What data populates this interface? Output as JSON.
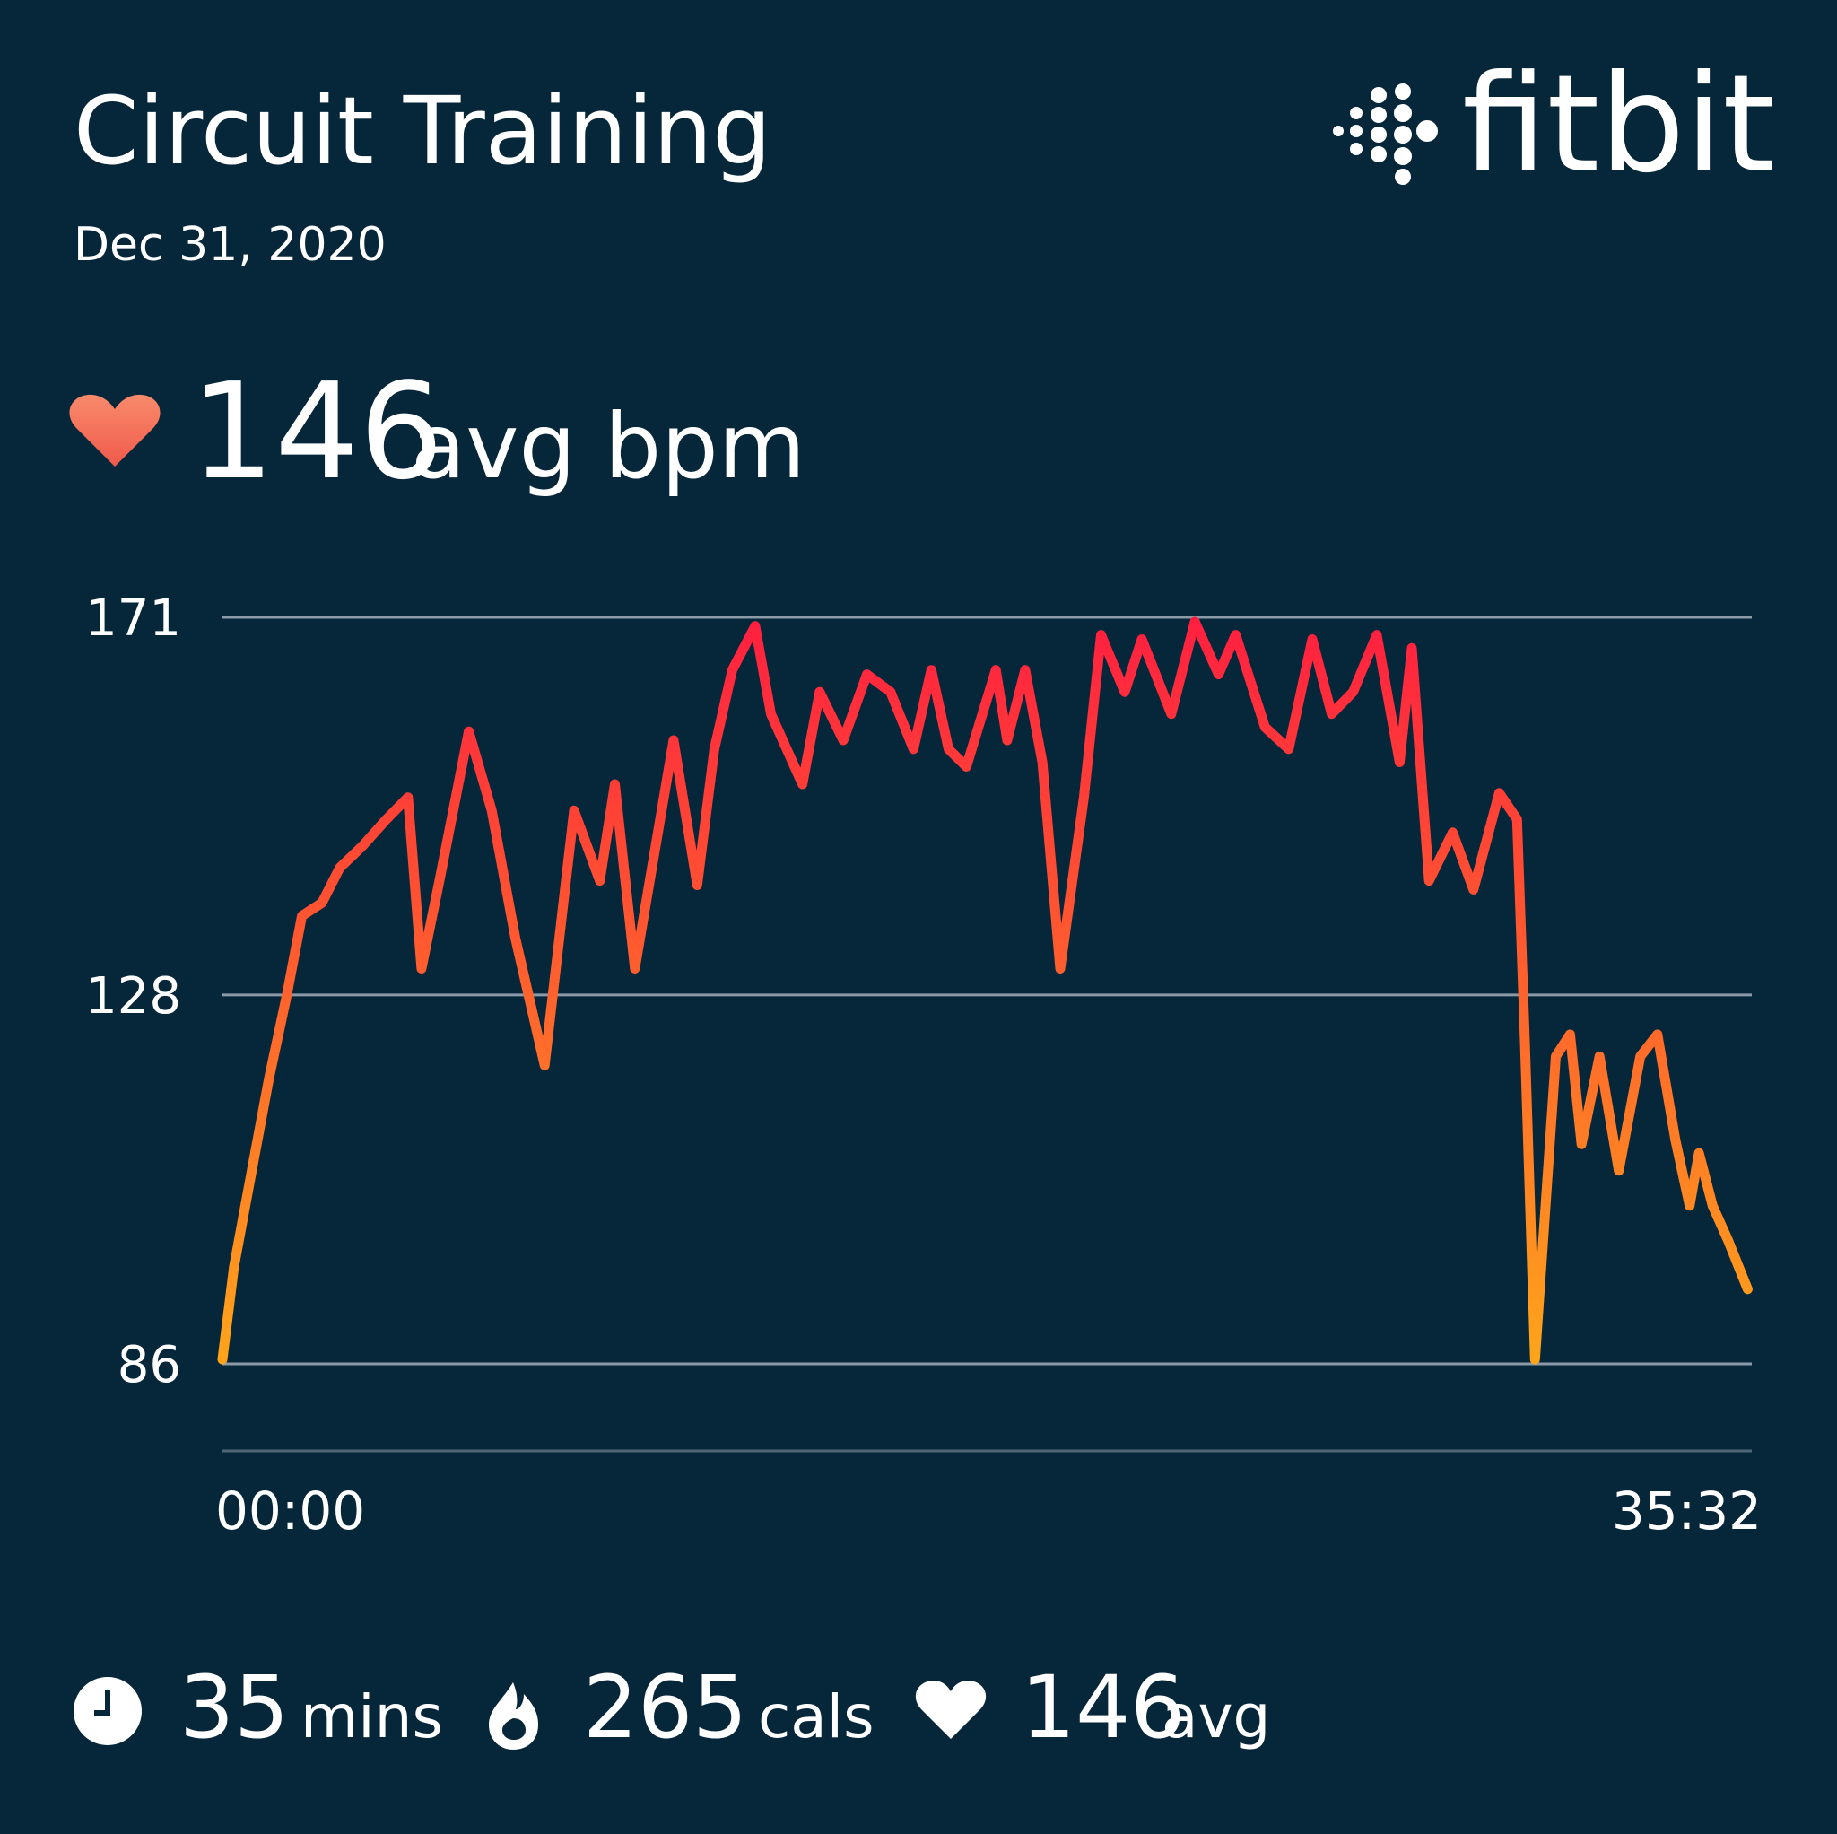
{
  "header": {
    "title": "Circuit Training",
    "date": "Dec 31, 2020",
    "brand": "fitbit"
  },
  "summary": {
    "value": "146",
    "unit": "avg bpm"
  },
  "chart_data": {
    "type": "line",
    "xlim": [
      0,
      2132
    ],
    "xticks": [
      {
        "value": 0,
        "label": "00:00"
      },
      {
        "value": 2132,
        "label": "35:32"
      }
    ],
    "ylim": [
      86,
      171
    ],
    "yticks": [
      86,
      128,
      171
    ],
    "grid": true,
    "gradient": [
      "#ffa51a",
      "#ff1f40"
    ],
    "x": [
      0,
      16,
      41,
      65,
      90,
      111,
      139,
      164,
      196,
      229,
      259,
      278,
      303,
      344,
      376,
      409,
      450,
      491,
      527,
      548,
      576,
      630,
      663,
      687,
      712,
      744,
      766,
      810,
      834,
      867,
      900,
      933,
      965,
      990,
      1014,
      1039,
      1080,
      1096,
      1121,
      1145,
      1170,
      1203,
      1227,
      1260,
      1284,
      1325,
      1358,
      1391,
      1415,
      1456,
      1489,
      1522,
      1549,
      1579,
      1612,
      1644,
      1661,
      1685,
      1718,
      1747,
      1783,
      1808,
      1819,
      1833,
      1862,
      1882,
      1898,
      1923,
      1950,
      1980,
      2004,
      2029,
      2049,
      2062,
      2081,
      2103,
      2130
    ],
    "values": [
      86.5,
      97,
      108,
      118.5,
      128,
      137,
      138.5,
      142.5,
      145,
      148,
      150.5,
      131,
      141,
      158,
      149,
      134.5,
      120,
      149,
      141,
      152,
      131,
      157,
      140.5,
      156,
      165,
      170,
      160,
      152,
      162.5,
      157,
      164.5,
      162.5,
      156,
      165,
      156,
      154,
      165,
      157,
      165,
      154.5,
      131,
      150.5,
      169,
      162.5,
      168.5,
      160,
      170.5,
      164.5,
      169,
      158.5,
      156,
      168.5,
      160,
      162.5,
      169,
      154.5,
      167.5,
      141,
      146.5,
      140,
      151,
      148,
      122.5,
      86.5,
      121,
      123.5,
      111,
      121,
      108,
      121,
      123.5,
      111.5,
      104,
      110,
      104,
      100,
      94.5
    ]
  },
  "stats": [
    {
      "value": "35",
      "unit": "mins"
    },
    {
      "value": "265",
      "unit": "cals"
    },
    {
      "value": "146",
      "unit": "avg"
    }
  ]
}
